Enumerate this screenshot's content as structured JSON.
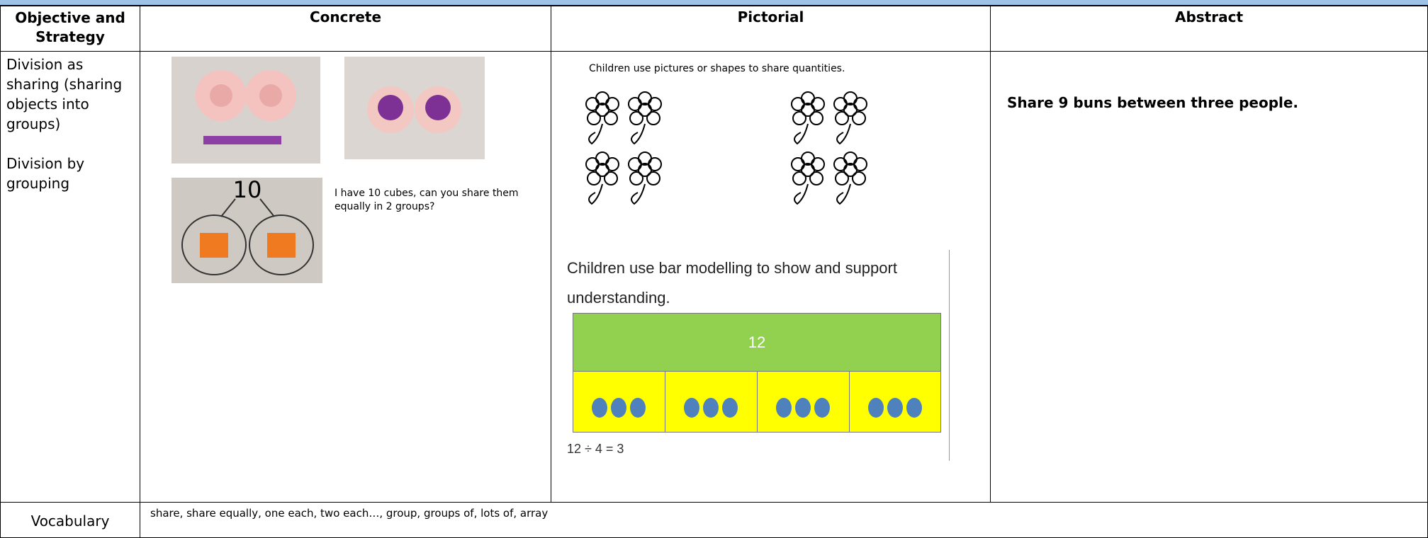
{
  "table": {
    "headers": [
      "Objective and Strategy",
      "Concrete",
      "Pictorial",
      "Abstract"
    ],
    "row": {
      "objective": [
        "Division as sharing (sharing objects into groups)",
        "Division by grouping"
      ],
      "concrete": {
        "photo_label": "10",
        "caption": "I have 10 cubes, can you share them equally in 2 groups?"
      },
      "pictorial": {
        "intro": "Children use pictures or shapes to share quantities.",
        "bar_intro": "Children use bar modelling to show and support understanding.",
        "bar_total": "12",
        "equation": "12 ÷ 4 = 3"
      },
      "abstract": "Share 9 buns between three people."
    },
    "vocabulary": {
      "label": "Vocabulary",
      "text": "share, share equally, one each, two each…, group, groups of, lots of, array"
    }
  }
}
